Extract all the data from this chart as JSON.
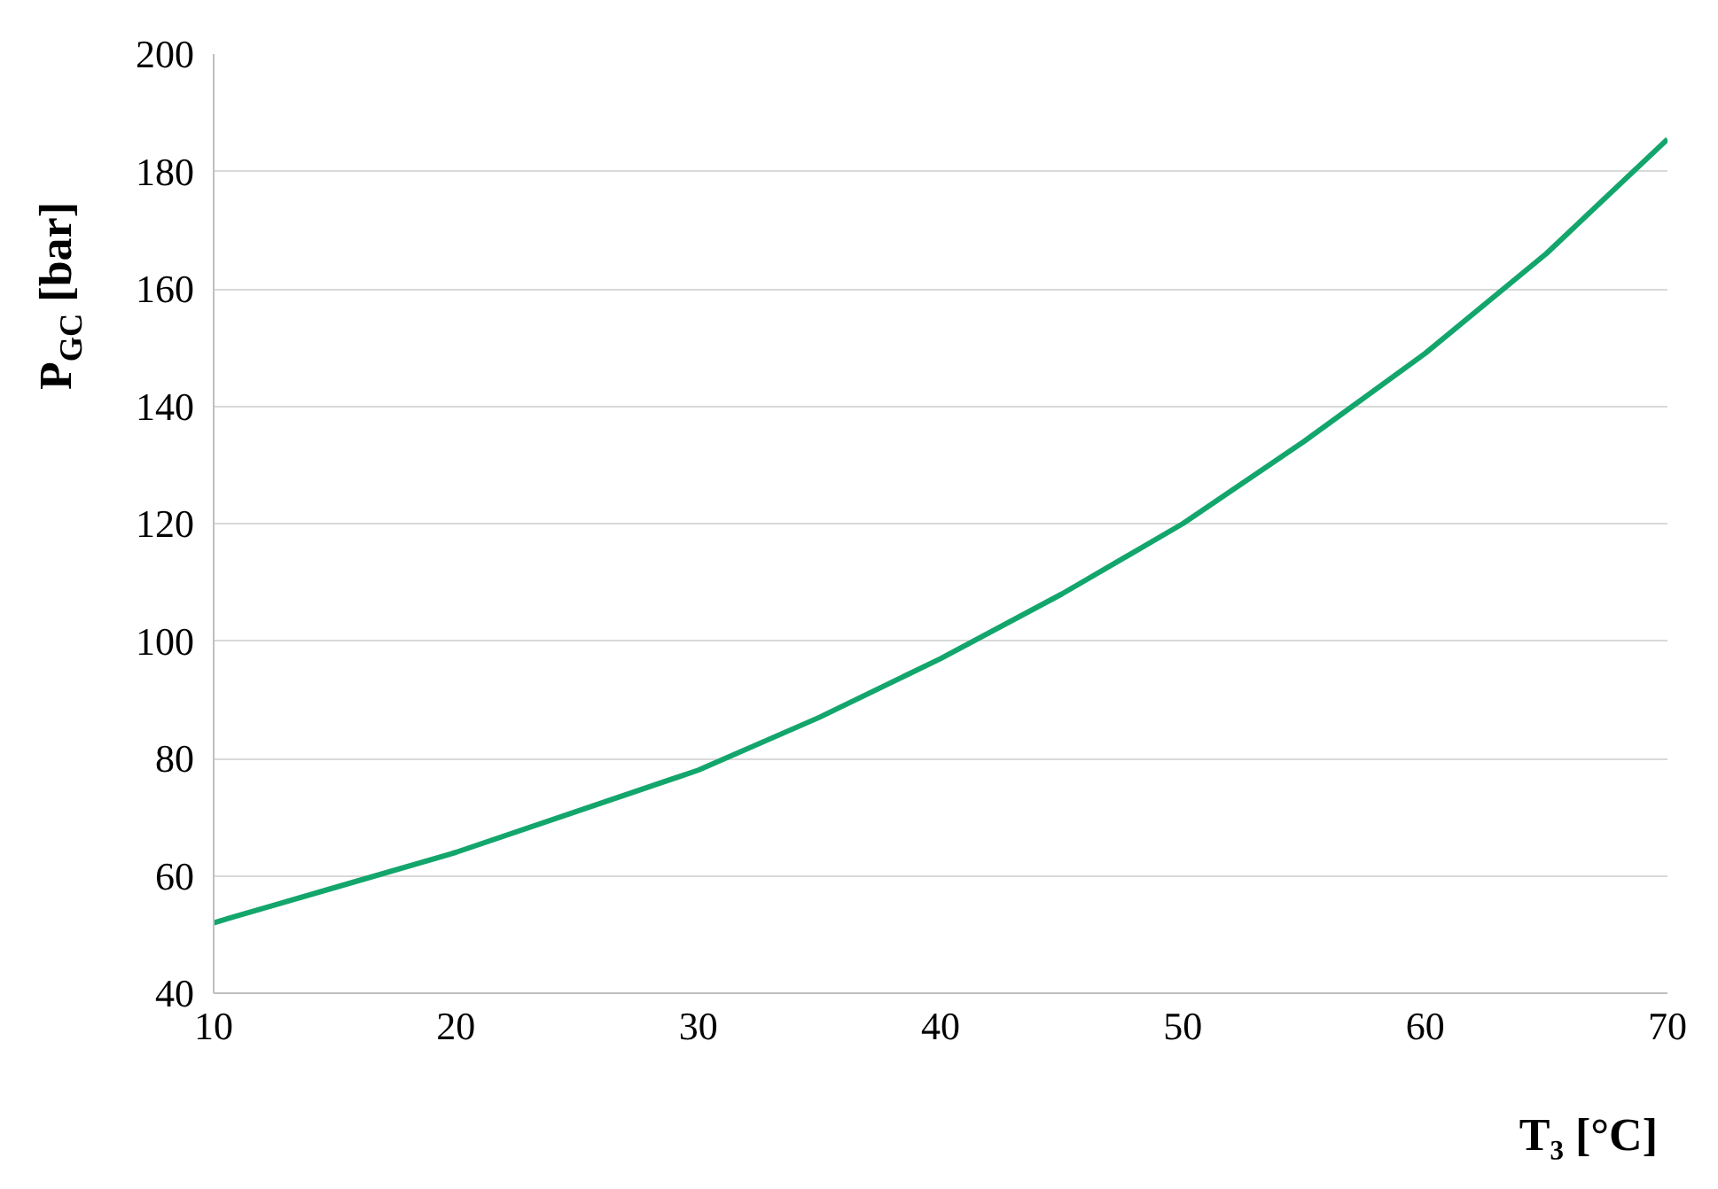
{
  "chart_data": {
    "type": "line",
    "xlabel": "T₃ [°C]",
    "ylabel": "P$_{GC}$ [bar]",
    "x": [
      10,
      15,
      20,
      25,
      30,
      35,
      40,
      45,
      50,
      55,
      60,
      65,
      70
    ],
    "series": [
      {
        "color": "#13a66c",
        "values": [
          52,
          58,
          64,
          71,
          78,
          87,
          97,
          108,
          120,
          134,
          149,
          166,
          185.5
        ]
      }
    ],
    "xlim": [
      10,
      70
    ],
    "xticks": [
      10,
      20,
      30,
      40,
      50,
      60,
      70
    ],
    "ylim": [
      40,
      200
    ],
    "yticks": [
      40,
      60,
      80,
      100,
      120,
      140,
      160,
      180,
      200
    ],
    "grid": "y",
    "marker": "none",
    "line_style": "solid"
  }
}
